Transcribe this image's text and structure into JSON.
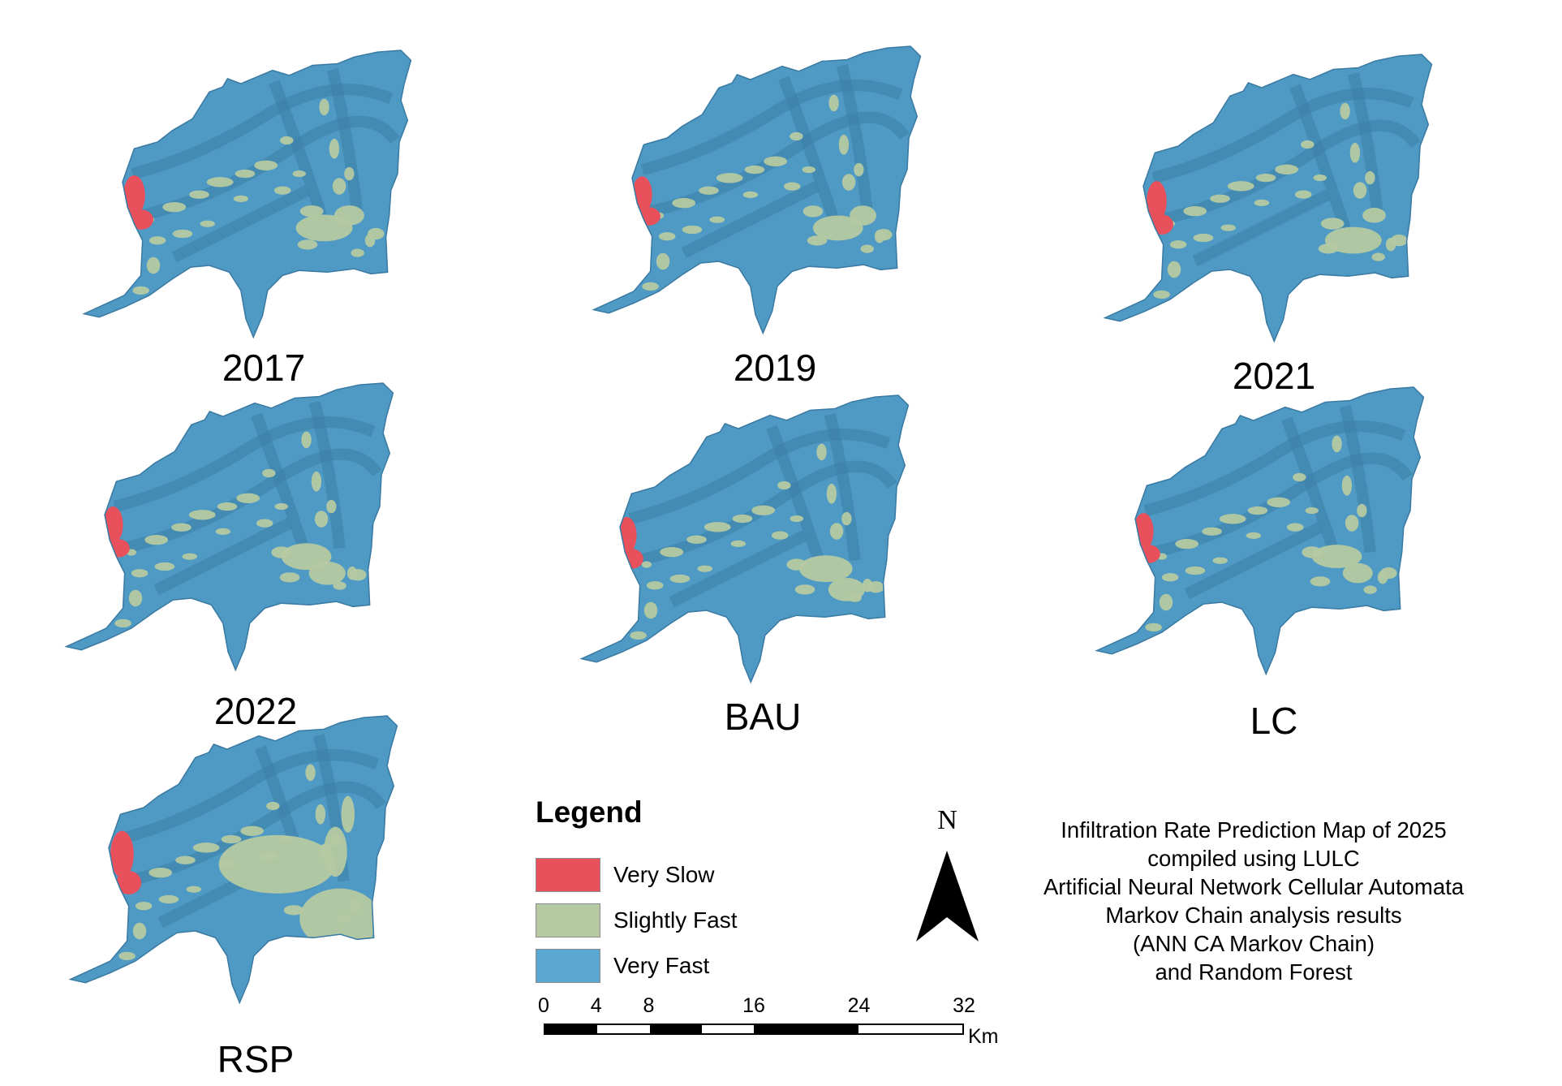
{
  "colors": {
    "very_slow": "#e8505b",
    "slightly_fast": "#b5c9a2",
    "very_fast": "#4f9ac4",
    "ridge": "#3d7fa8"
  },
  "panels": [
    {
      "label": "2017",
      "variant": "a"
    },
    {
      "label": "2019",
      "variant": "b"
    },
    {
      "label": "2021",
      "variant": "c"
    },
    {
      "label": "2022",
      "variant": "d"
    },
    {
      "label": "BAU",
      "variant": "e"
    },
    {
      "label": "LC",
      "variant": "f"
    },
    {
      "label": "RSP",
      "variant": "rsp"
    }
  ],
  "legend": {
    "title": "Legend",
    "items": [
      {
        "label": "Very Slow",
        "color": "#e8505b"
      },
      {
        "label": "Slightly Fast",
        "color": "#b5c9a2"
      },
      {
        "label": "Very Fast",
        "color": "#5aa7d2"
      }
    ]
  },
  "scale_bar": {
    "ticks": [
      "0",
      "4",
      "8",
      "16",
      "24",
      "32"
    ],
    "unit": "Km"
  },
  "north_arrow": {
    "letter": "N"
  },
  "caption": {
    "lines": [
      "Infiltration Rate Prediction Map of 2025",
      "compiled using LULC",
      "Artificial Neural Network Cellular Automata",
      "Markov Chain analysis results",
      "(ANN CA Markov Chain)",
      "and Random Forest"
    ]
  }
}
